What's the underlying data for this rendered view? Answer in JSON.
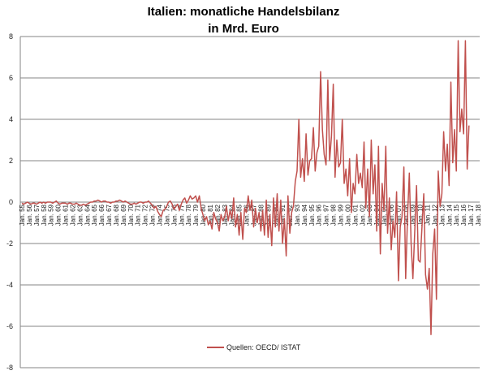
{
  "chart_data": {
    "type": "line",
    "title": "Italien: monatliche Handelsbilanz",
    "subtitle": "in Mrd. Euro",
    "xlabel": "",
    "ylabel": "",
    "ylim": [
      -8,
      8
    ],
    "y_ticks": [
      "8",
      "6",
      "4",
      "2",
      "0",
      "-2",
      "-4",
      "-6",
      "-8"
    ],
    "y_tick_values": [
      8,
      6,
      4,
      2,
      0,
      -2,
      -4,
      -6,
      -8
    ],
    "x_range_years": [
      1955,
      2018
    ],
    "x_tick_labels": [
      "Jan. 55",
      "Jan. 56",
      "Jan. 57",
      "Jan. 58",
      "Jan. 59",
      "Jan. 60",
      "Jan. 61",
      "Jan. 62",
      "Jan. 63",
      "Jan. 64",
      "Jan. 65",
      "Jan. 66",
      "Jan. 67",
      "Jan. 68",
      "Jan. 69",
      "Jan. 70",
      "Jan. 71",
      "Jan. 72",
      "Jan. 73",
      "Jan. 74",
      "Jan. 75",
      "Jan. 76",
      "Jan. 77",
      "Jan. 78",
      "Jan. 79",
      "Jan. 80",
      "Jan. 81",
      "Jan. 82",
      "Jan. 83",
      "Jan. 84",
      "Jan. 85",
      "Jan. 86",
      "Jan. 87",
      "Jan. 88",
      "Jan. 89",
      "Jan. 90",
      "Jan. 91",
      "Jan. 92",
      "Jan. 93",
      "Jan. 94",
      "Jan. 95",
      "Jan. 96",
      "Jan. 97",
      "Jan. 98",
      "Jan. 99",
      "Jan. 00",
      "Jan. 01",
      "Jan. 02",
      "Jan. 03",
      "Jan. 04",
      "Jan. 05",
      "Jan. 06",
      "Jan. 07",
      "Jan. 08",
      "Jan. 09",
      "Jan. 10",
      "Jan. 11",
      "Jan. 12",
      "Jan. 13",
      "Jan. 14",
      "Jan. 15",
      "Jan. 16",
      "Jan. 17",
      "Jan. 18"
    ],
    "grid": true,
    "legend_position": "bottom-center",
    "series": [
      {
        "name": "Quellen: OECD/ ISTAT",
        "color": "#c0504d",
        "x_start": 1955.0,
        "x_step": 0.25,
        "values": [
          -0.05,
          -0.1,
          -0.05,
          0,
          -0.05,
          -0.1,
          -0.05,
          -0.05,
          -0.1,
          -0.05,
          0,
          -0.05,
          0,
          -0.05,
          0,
          0,
          0,
          -0.05,
          0,
          0.05,
          -0.05,
          -0.1,
          -0.05,
          -0.05,
          -0.05,
          -0.1,
          -0.05,
          -0.05,
          -0.1,
          -0.1,
          -0.05,
          -0.1,
          -0.15,
          -0.15,
          -0.1,
          -0.15,
          -0.1,
          -0.05,
          0,
          0,
          0.05,
          0.05,
          0.1,
          0.05,
          0,
          0.05,
          0.05,
          0,
          0,
          -0.05,
          0,
          0,
          0.05,
          0.05,
          0.1,
          0.05,
          0,
          0.05,
          0,
          -0.05,
          -0.1,
          -0.1,
          -0.05,
          -0.1,
          -0.05,
          0,
          0,
          -0.05,
          0,
          0,
          0.05,
          -0.05,
          -0.15,
          -0.3,
          -0.2,
          -0.45,
          -0.6,
          -0.7,
          -0.4,
          -0.35,
          -0.2,
          0,
          0.05,
          -0.1,
          -0.35,
          -0.2,
          -0.1,
          -0.4,
          -0.1,
          0.1,
          0.2,
          -0.05,
          0.1,
          0.3,
          0.15,
          0.2,
          0.3,
          0,
          0.3,
          -0.3,
          -0.6,
          -0.9,
          -0.7,
          -1.1,
          -0.9,
          -1.3,
          -0.5,
          -0.8,
          -1.0,
          -1.4,
          -0.6,
          -0.9,
          -0.7,
          -0.2,
          -0.9,
          -0.4,
          -0.8,
          0.2,
          -1.2,
          -0.6,
          -1.6,
          -0.5,
          -1.8,
          -0.3,
          -0.5,
          0.3,
          -0.4,
          0.1,
          -1.2,
          -0.3,
          -1.0,
          -0.5,
          -1.4,
          -0.4,
          -1.6,
          0.1,
          -1.7,
          -0.6,
          -2.1,
          0.2,
          -1.2,
          0.4,
          -1.4,
          0.1,
          -2.0,
          -0.8,
          -2.6,
          0.3,
          -1.5,
          -0.5,
          -0.2,
          1.0,
          1.5,
          4.0,
          1.2,
          2.1,
          1.0,
          3.3,
          1.3,
          2.0,
          2.1,
          3.6,
          1.5,
          2.4,
          2.7,
          6.3,
          3.5,
          2.3,
          1.8,
          5.9,
          2.0,
          3.2,
          5.7,
          1.2,
          3.0,
          1.7,
          1.9,
          4.0,
          0.9,
          1.6,
          0.3,
          2.1,
          -0.5,
          0.9,
          0.4,
          2.3,
          0.9,
          1.4,
          0.7,
          2.9,
          -0.3,
          1.6,
          -0.7,
          3.0,
          0.4,
          1.8,
          -1.4,
          2.7,
          -2.5,
          0.9,
          -0.4,
          2.7,
          -1.5,
          0.2,
          -2.3,
          -0.9,
          -1.7,
          0.5,
          -3.8,
          -1.2,
          -0.7,
          1.7,
          -3.7,
          -0.8,
          1.4,
          -2.0,
          -3.7,
          -1.5,
          0.8,
          -2.8,
          -2.9,
          -1.2,
          0.4,
          -3.5,
          -4.2,
          -3.2,
          -6.4,
          -2.5,
          -1.3,
          -4.7,
          1.5,
          -0.2,
          0.4,
          3.4,
          1.5,
          2.8,
          0.8,
          5.8,
          1.9,
          3.5,
          1.5,
          7.8,
          3.4,
          4.5,
          3.3,
          7.8,
          1.6,
          3.7
        ]
      }
    ]
  }
}
